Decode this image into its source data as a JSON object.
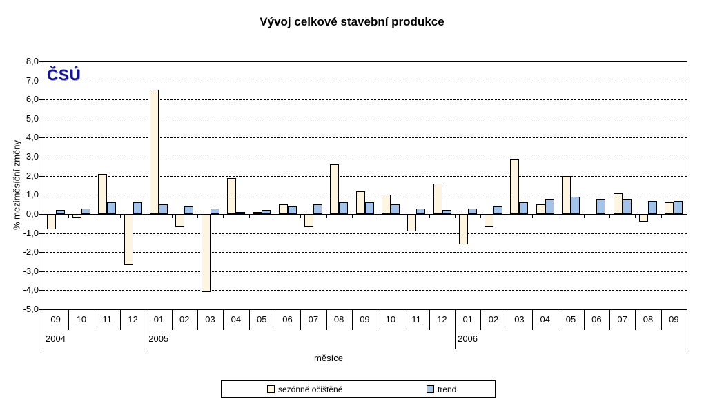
{
  "title": "Vývoj celkové stavební produkce",
  "logo": {
    "text": "ČSÚ",
    "color": "#14148C"
  },
  "chart_data": {
    "type": "bar",
    "title": "Vývoj celkové stavební produkce",
    "xlabel": "měsíce",
    "ylabel": "% meziměsíční změny",
    "ylim": [
      -5.0,
      8.0
    ],
    "ytick_step": 1.0,
    "ytick_decimal_separator": ",",
    "grid": "horizontal-dashed",
    "legend_position": "bottom",
    "categories": [
      "09",
      "10",
      "11",
      "12",
      "01",
      "02",
      "03",
      "04",
      "05",
      "06",
      "07",
      "08",
      "09",
      "10",
      "11",
      "12",
      "01",
      "02",
      "03",
      "04",
      "05",
      "06",
      "07",
      "08",
      "09"
    ],
    "year_groups": [
      {
        "label": "2004",
        "start_index": 0,
        "months": 4
      },
      {
        "label": "2005",
        "start_index": 4,
        "months": 12
      },
      {
        "label": "2006",
        "start_index": 16,
        "months": 9
      }
    ],
    "series": [
      {
        "name": "sezónně očištěné",
        "key": "seasonal",
        "color": "#FDF5E2",
        "values": [
          -0.8,
          -0.2,
          2.1,
          -2.7,
          6.5,
          -0.7,
          -4.1,
          1.9,
          0.1,
          0.5,
          -0.7,
          2.6,
          1.2,
          1.0,
          -0.9,
          1.6,
          -1.6,
          -0.7,
          2.9,
          0.5,
          2.0,
          0.0,
          1.1,
          -0.4,
          0.6
        ]
      },
      {
        "name": "trend",
        "key": "trend",
        "color": "#A3C4E8",
        "values": [
          0.2,
          0.3,
          0.6,
          0.6,
          0.5,
          0.4,
          0.3,
          0.1,
          0.2,
          0.4,
          0.5,
          0.6,
          0.6,
          0.5,
          0.3,
          0.2,
          0.3,
          0.4,
          0.6,
          0.8,
          0.9,
          0.8,
          0.8,
          0.7,
          0.7
        ]
      }
    ]
  }
}
